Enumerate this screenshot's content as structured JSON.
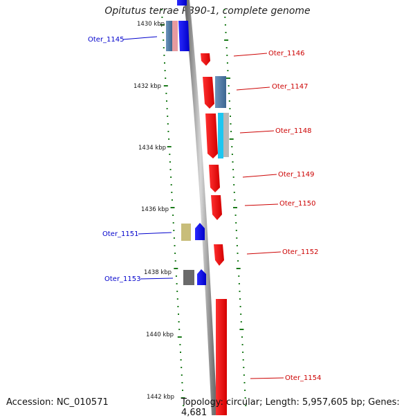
{
  "title": "Opitutus terrae PB90-1, complete genome",
  "accession": "Accession: NC_010571",
  "topology": "Topology: circular; Length: 5,957,605 bp; Genes: 4,681",
  "colors": {
    "forward": "#0000ee",
    "reverse": "#cc0000",
    "tick": "#1a7a1a",
    "backbone": "#9a9a9a"
  },
  "scale_labels": [
    "1430 kbp",
    "1432 kbp",
    "1434 kbp",
    "1436 kbp",
    "1438 kbp",
    "1440 kbp",
    "1442 kbp"
  ],
  "genes": [
    {
      "label": "Oter_1145",
      "strand": "forward"
    },
    {
      "label": "Oter_1146",
      "strand": "reverse"
    },
    {
      "label": "Oter_1147",
      "strand": "reverse"
    },
    {
      "label": "Oter_1148",
      "strand": "reverse"
    },
    {
      "label": "Oter_1149",
      "strand": "reverse"
    },
    {
      "label": "Oter_1150",
      "strand": "reverse"
    },
    {
      "label": "Oter_1151",
      "strand": "forward"
    },
    {
      "label": "Oter_1152",
      "strand": "reverse"
    },
    {
      "label": "Oter_1153",
      "strand": "forward"
    },
    {
      "label": "Oter_1154",
      "strand": "reverse"
    }
  ]
}
